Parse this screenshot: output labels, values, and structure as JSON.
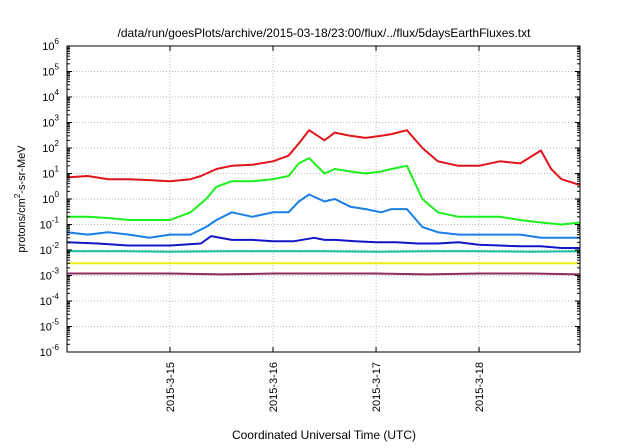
{
  "chart_data": {
    "type": "line",
    "title": "/data/run/goesPlots/archive/2015-03-18/23:00/flux/../flux/5daysEarthFluxes.txt",
    "xlabel": "Coordinated Universal Time (UTC)",
    "ylabel": {
      "prefix": "protons/cm",
      "sup": "2",
      "suffix": "-s-sr-MeV"
    },
    "y_scale": "log",
    "ylim_exponents": [
      -6,
      6
    ],
    "xlim_days": [
      14.0,
      18.98
    ],
    "x_ticks": [
      {
        "day": 15,
        "label": "2015-3-15"
      },
      {
        "day": 16,
        "label": "2015-3-16"
      },
      {
        "day": 17,
        "label": "2015-3-17"
      },
      {
        "day": 18,
        "label": "2015-3-18"
      }
    ],
    "grid": true,
    "legend": "none",
    "series": [
      {
        "color": "#e0141a",
        "x": [
          14.0,
          14.2,
          14.4,
          14.6,
          14.8,
          15.0,
          15.2,
          15.3,
          15.45,
          15.6,
          15.8,
          16.0,
          16.15,
          16.25,
          16.35,
          16.5,
          16.6,
          16.75,
          16.9,
          17.05,
          17.15,
          17.3,
          17.45,
          17.6,
          17.8,
          18.0,
          18.2,
          18.4,
          18.6,
          18.7,
          18.8,
          18.98
        ],
        "values": [
          7,
          8,
          6,
          6,
          5.5,
          5,
          6,
          8,
          15,
          20,
          22,
          30,
          50,
          150,
          500,
          200,
          400,
          300,
          250,
          300,
          350,
          500,
          100,
          30,
          20,
          20,
          30,
          25,
          80,
          15,
          6,
          3.5
        ]
      },
      {
        "color": "#1cf01c",
        "x": [
          14.0,
          14.2,
          14.4,
          14.6,
          14.8,
          15.0,
          15.2,
          15.35,
          15.45,
          15.6,
          15.8,
          16.0,
          16.15,
          16.25,
          16.35,
          16.5,
          16.6,
          16.75,
          16.9,
          17.05,
          17.15,
          17.3,
          17.45,
          17.6,
          17.8,
          18.0,
          18.2,
          18.4,
          18.6,
          18.8,
          18.98
        ],
        "values": [
          0.2,
          0.2,
          0.18,
          0.15,
          0.15,
          0.15,
          0.3,
          1,
          3,
          5,
          5,
          6,
          8,
          25,
          40,
          10,
          15,
          12,
          10,
          12,
          15,
          20,
          1,
          0.3,
          0.2,
          0.2,
          0.2,
          0.15,
          0.12,
          0.1,
          0.12
        ]
      },
      {
        "color": "#1a7fe8",
        "x": [
          14.0,
          14.2,
          14.4,
          14.6,
          14.8,
          15.0,
          15.2,
          15.35,
          15.45,
          15.6,
          15.8,
          16.0,
          16.15,
          16.25,
          16.35,
          16.5,
          16.6,
          16.75,
          16.9,
          17.05,
          17.15,
          17.3,
          17.45,
          17.6,
          17.8,
          18.0,
          18.2,
          18.4,
          18.6,
          18.8,
          18.98
        ],
        "values": [
          0.05,
          0.04,
          0.05,
          0.04,
          0.03,
          0.04,
          0.04,
          0.08,
          0.15,
          0.3,
          0.2,
          0.3,
          0.3,
          0.8,
          1.5,
          0.8,
          1,
          0.5,
          0.4,
          0.3,
          0.4,
          0.4,
          0.08,
          0.05,
          0.04,
          0.04,
          0.04,
          0.04,
          0.03,
          0.03,
          0.03
        ]
      },
      {
        "color": "#1414c8",
        "x": [
          14.0,
          14.3,
          14.6,
          15.0,
          15.3,
          15.4,
          15.6,
          15.8,
          16.0,
          16.2,
          16.4,
          16.5,
          16.6,
          16.8,
          17.0,
          17.2,
          17.4,
          17.6,
          17.8,
          18.0,
          18.2,
          18.4,
          18.6,
          18.8,
          18.98
        ],
        "values": [
          0.02,
          0.018,
          0.015,
          0.015,
          0.018,
          0.035,
          0.025,
          0.025,
          0.022,
          0.022,
          0.03,
          0.025,
          0.025,
          0.022,
          0.02,
          0.02,
          0.018,
          0.018,
          0.02,
          0.016,
          0.015,
          0.014,
          0.014,
          0.012,
          0.012
        ]
      },
      {
        "color": "#1abfa0",
        "x": [
          14.0,
          14.5,
          15.0,
          15.5,
          16.0,
          16.5,
          17.0,
          17.5,
          18.0,
          18.5,
          18.98
        ],
        "values": [
          0.009,
          0.009,
          0.0085,
          0.009,
          0.009,
          0.009,
          0.0085,
          0.009,
          0.009,
          0.0085,
          0.009
        ]
      },
      {
        "color": "#f0f010",
        "x": [
          14.0,
          14.5,
          15.0,
          15.5,
          16.0,
          16.5,
          17.0,
          17.5,
          18.0,
          18.5,
          18.98
        ],
        "values": [
          0.003,
          0.003,
          0.003,
          0.003,
          0.003,
          0.003,
          0.003,
          0.003,
          0.003,
          0.003,
          0.003
        ]
      },
      {
        "color": "#8c2c64",
        "x": [
          14.0,
          14.5,
          15.0,
          15.5,
          16.0,
          16.5,
          17.0,
          17.5,
          18.0,
          18.5,
          18.98
        ],
        "values": [
          0.0012,
          0.0012,
          0.0012,
          0.0011,
          0.0012,
          0.0012,
          0.0012,
          0.0011,
          0.0012,
          0.0012,
          0.0011
        ]
      }
    ]
  }
}
